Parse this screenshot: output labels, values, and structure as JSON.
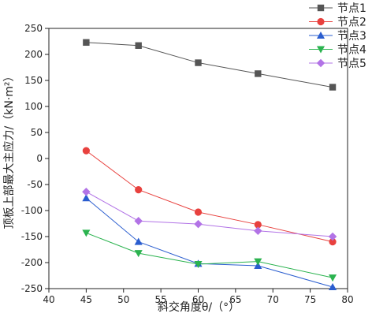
{
  "chart_data": {
    "type": "line",
    "xlabel": "斜交角度θ/（°）",
    "ylabel": "顶板上部最大主应力/（kN·m²）",
    "xlim": [
      40,
      80
    ],
    "ylim": [
      -250,
      250
    ],
    "xticks": [
      40,
      45,
      50,
      55,
      60,
      65,
      70,
      75,
      80
    ],
    "yticks": [
      -250,
      -200,
      -150,
      -100,
      -50,
      0,
      50,
      100,
      150,
      200,
      250
    ],
    "grid": false,
    "legend_position": "top-right",
    "x": [
      45,
      52,
      60,
      68,
      78
    ],
    "series": [
      {
        "name": "节点1",
        "color": "#555555",
        "marker": "square",
        "values": [
          223,
          217,
          184,
          163,
          137
        ]
      },
      {
        "name": "节点2",
        "color": "#e8413e",
        "marker": "circle",
        "values": [
          15,
          -60,
          -103,
          -127,
          -160
        ]
      },
      {
        "name": "节点3",
        "color": "#2a5dcf",
        "marker": "triangle-up",
        "values": [
          -76,
          -160,
          -202,
          -206,
          -247
        ]
      },
      {
        "name": "节点4",
        "color": "#2bb34f",
        "marker": "triangle-down",
        "values": [
          -143,
          -182,
          -203,
          -198,
          -229
        ]
      },
      {
        "name": "节点5",
        "color": "#b273e6",
        "marker": "diamond",
        "values": [
          -64,
          -120,
          -126,
          -139,
          -150
        ]
      }
    ]
  }
}
